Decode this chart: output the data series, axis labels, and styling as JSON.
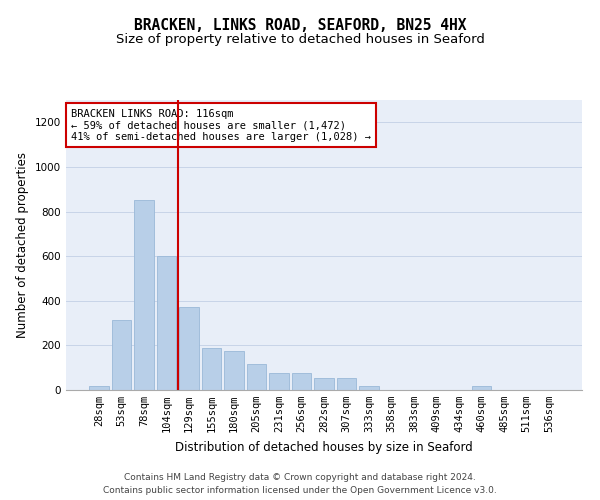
{
  "title": "BRACKEN, LINKS ROAD, SEAFORD, BN25 4HX",
  "subtitle": "Size of property relative to detached houses in Seaford",
  "xlabel": "Distribution of detached houses by size in Seaford",
  "ylabel": "Number of detached properties",
  "categories": [
    "28sqm",
    "53sqm",
    "78sqm",
    "104sqm",
    "129sqm",
    "155sqm",
    "180sqm",
    "205sqm",
    "231sqm",
    "256sqm",
    "282sqm",
    "307sqm",
    "333sqm",
    "358sqm",
    "383sqm",
    "409sqm",
    "434sqm",
    "460sqm",
    "485sqm",
    "511sqm",
    "536sqm"
  ],
  "values": [
    20,
    315,
    850,
    600,
    370,
    190,
    175,
    115,
    75,
    75,
    55,
    55,
    20,
    0,
    0,
    0,
    0,
    20,
    0,
    0,
    0
  ],
  "bar_color": "#b8cfe8",
  "bar_edge_color": "#9ab8d8",
  "vline_color": "#cc0000",
  "vline_x": 3.5,
  "annotation_text": "BRACKEN LINKS ROAD: 116sqm\n← 59% of detached houses are smaller (1,472)\n41% of semi-detached houses are larger (1,028) →",
  "annotation_box_facecolor": "#ffffff",
  "annotation_box_edgecolor": "#cc0000",
  "ylim": [
    0,
    1300
  ],
  "yticks": [
    0,
    200,
    400,
    600,
    800,
    1000,
    1200
  ],
  "grid_color": "#c8d4e8",
  "background_color": "#e8eef8",
  "footer_text": "Contains HM Land Registry data © Crown copyright and database right 2024.\nContains public sector information licensed under the Open Government Licence v3.0.",
  "title_fontsize": 10.5,
  "subtitle_fontsize": 9.5,
  "axis_label_fontsize": 8.5,
  "tick_fontsize": 7.5,
  "footer_fontsize": 6.5,
  "annot_fontsize": 7.5
}
